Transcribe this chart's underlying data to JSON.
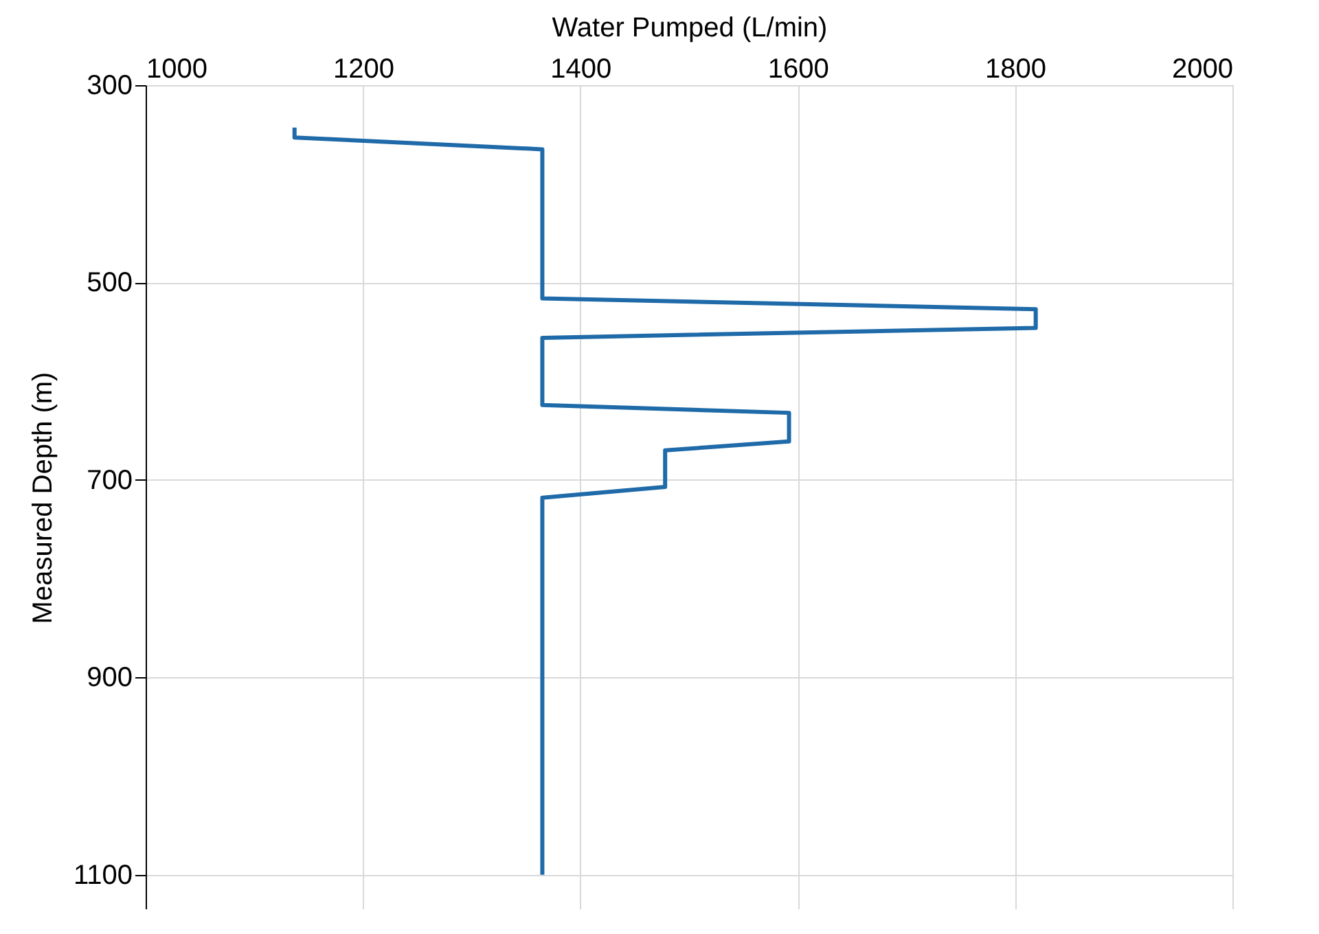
{
  "chart_data": {
    "type": "line",
    "xlabel": "Water Pumped (L/min)",
    "ylabel": "Measured Depth (m)",
    "xlim": [
      1000,
      2000
    ],
    "xticks": [
      1000,
      1200,
      1400,
      1600,
      1800,
      2000
    ],
    "ylim": [
      1135,
      300
    ],
    "yticks": [
      300,
      500,
      700,
      900,
      1100
    ],
    "grid": true,
    "marker": "none",
    "line_style": "solid",
    "series": [
      {
        "color": "#1f6aa8",
        "x": [
          1137,
          1137,
          1365,
          1365,
          1819,
          1819,
          1365,
          1365,
          1592,
          1592,
          1478,
          1478,
          1365,
          1365
        ],
        "values": [
          343,
          353,
          365,
          516,
          527,
          546,
          556,
          624,
          632,
          661,
          670,
          707,
          718,
          1100
        ]
      }
    ]
  }
}
